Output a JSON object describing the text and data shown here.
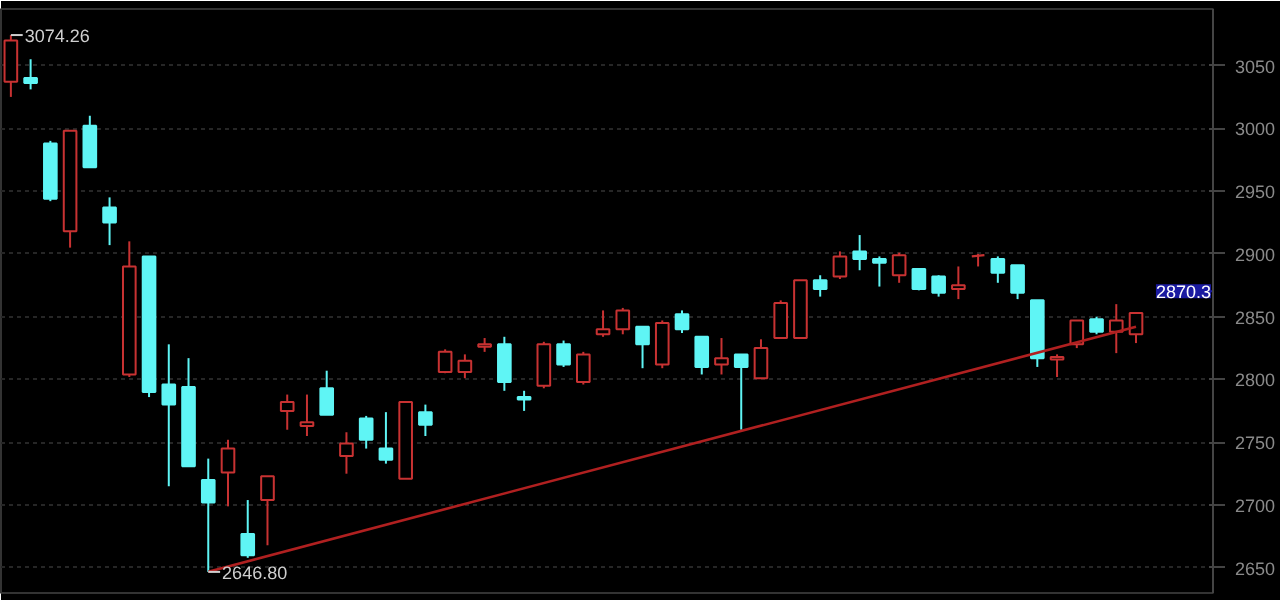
{
  "chart_data": {
    "type": "candlestick",
    "categories": [
      null,
      null,
      null,
      null,
      null,
      null,
      null,
      null,
      null,
      null,
      null,
      null,
      null,
      null,
      null,
      null,
      null,
      null,
      null,
      null,
      null,
      null,
      null,
      null,
      null,
      null,
      null,
      null,
      null,
      null,
      null,
      null,
      null,
      null,
      null,
      null,
      null,
      null,
      null,
      null,
      null,
      null,
      null,
      null,
      null,
      null,
      null,
      null,
      null,
      null,
      null,
      null,
      null,
      null,
      null,
      null,
      null,
      null
    ],
    "series": [
      {
        "ohlc": [
          [
            3037,
            3074.26,
            3025,
            3070
          ],
          [
            3040,
            3055,
            3031,
            3036
          ],
          [
            2988,
            2990,
            2942,
            2944
          ],
          [
            2918,
            2998,
            2905,
            2998
          ],
          [
            3002,
            3010,
            2969,
            2969
          ],
          [
            2937,
            2945,
            2907,
            2925
          ],
          [
            2804,
            2910,
            2802,
            2890
          ],
          [
            2898,
            2898,
            2786,
            2790
          ],
          [
            2796,
            2828,
            2715,
            2780
          ],
          [
            2794,
            2817,
            2731,
            2731
          ],
          [
            2720,
            2737,
            2646.8,
            2702
          ],
          [
            2726,
            2752,
            2699,
            2745
          ],
          [
            2677,
            2704,
            2658,
            2660
          ],
          [
            2704,
            2723,
            2668,
            2723
          ],
          [
            2775,
            2788,
            2760,
            2782
          ],
          [
            2763,
            2788,
            2755,
            2766
          ],
          [
            2793,
            2807,
            2772,
            2772
          ],
          [
            2739,
            2758,
            2725,
            2749
          ],
          [
            2769,
            2771,
            2745,
            2752
          ],
          [
            2745,
            2774,
            2733,
            2736
          ],
          [
            2721,
            2782,
            2721,
            2782
          ],
          [
            2774,
            2780,
            2755,
            2764
          ],
          [
            2806,
            2824,
            2805,
            2822
          ],
          [
            2806,
            2820,
            2801,
            2815
          ],
          [
            2826,
            2833,
            2822,
            2828
          ],
          [
            2828,
            2834,
            2791,
            2798
          ],
          [
            2786,
            2791,
            2775,
            2784
          ],
          [
            2795,
            2830,
            2793,
            2828
          ],
          [
            2828,
            2831,
            2810,
            2812
          ],
          [
            2798,
            2822,
            2796,
            2820
          ],
          [
            2836,
            2855,
            2834,
            2840
          ],
          [
            2840,
            2857,
            2836,
            2855
          ],
          [
            2842,
            2842,
            2809,
            2828
          ],
          [
            2812,
            2847,
            2809,
            2845
          ],
          [
            2852,
            2855,
            2837,
            2840
          ],
          [
            2834,
            2834,
            2804,
            2810
          ],
          [
            2812,
            2833,
            2804,
            2817
          ],
          [
            2820,
            2820,
            2760,
            2810
          ],
          [
            2801,
            2832,
            2801,
            2825
          ],
          [
            2833,
            2863,
            2833,
            2861
          ],
          [
            2833,
            2879,
            2833,
            2879
          ],
          [
            2879,
            2883,
            2866,
            2872
          ],
          [
            2882,
            2902,
            2880,
            2898
          ],
          [
            2902,
            2915,
            2887,
            2896
          ],
          [
            2896,
            2898,
            2874,
            2893
          ],
          [
            2883,
            2901,
            2877,
            2899
          ],
          [
            2888,
            2888,
            2871,
            2872
          ],
          [
            2882,
            2883,
            2866,
            2869
          ],
          [
            2872,
            2890,
            2864,
            2875
          ],
          [
            2898,
            2900,
            2890,
            2899
          ],
          [
            2896,
            2898,
            2877,
            2885
          ],
          [
            2891,
            2891,
            2864,
            2869
          ],
          [
            2863,
            2863,
            2810,
            2817
          ],
          [
            2816,
            2820,
            2802,
            2818
          ],
          [
            2828,
            2847,
            2825,
            2847
          ],
          [
            2848,
            2850,
            2836,
            2838
          ],
          [
            2838,
            2860,
            2821,
            2847
          ],
          [
            2836,
            2853,
            2829,
            2853
          ]
        ],
        "colors": [
          "#c83232",
          "#5ff5f5",
          "#5ff5f5",
          "#c83232",
          "#5ff5f5",
          "#5ff5f5",
          "#c83232",
          "#5ff5f5",
          "#5ff5f5",
          "#5ff5f5",
          "#5ff5f5",
          "#c83232",
          "#5ff5f5",
          "#c83232",
          "#c83232",
          "#c83232",
          "#5ff5f5",
          "#c83232",
          "#5ff5f5",
          "#5ff5f5",
          "#c83232",
          "#5ff5f5",
          "#c83232",
          "#c83232",
          "#c83232",
          "#5ff5f5",
          "#5ff5f5",
          "#c83232",
          "#5ff5f5",
          "#c83232",
          "#c83232",
          "#c83232",
          "#5ff5f5",
          "#c83232",
          "#5ff5f5",
          "#5ff5f5",
          "#c83232",
          "#5ff5f5",
          "#c83232",
          "#c83232",
          "#c83232",
          "#5ff5f5",
          "#c83232",
          "#5ff5f5",
          "#5ff5f5",
          "#c83232",
          "#5ff5f5",
          "#5ff5f5",
          "#c83232",
          "#c83232",
          "#5ff5f5",
          "#5ff5f5",
          "#5ff5f5",
          "#c83232",
          "#c83232",
          "#5ff5f5",
          "#c83232",
          "#c83232"
        ]
      },
      {
        "type": "line",
        "color": "#b02020",
        "values": [
          null,
          null,
          null,
          null,
          null,
          null,
          null,
          null,
          null,
          null,
          2647,
          null,
          null,
          null,
          null,
          null,
          null,
          null,
          null,
          null,
          null,
          null,
          null,
          null,
          null,
          null,
          null,
          null,
          null,
          null,
          null,
          null,
          null,
          null,
          null,
          null,
          null,
          null,
          null,
          null,
          null,
          null,
          null,
          null,
          null,
          null,
          null,
          null,
          null,
          null,
          null,
          null,
          null,
          null,
          null,
          null,
          null,
          2842
        ]
      }
    ],
    "ylim": [
      2630,
      3095
    ],
    "yticks": [
      2650,
      2700,
      2750,
      2800,
      2850,
      2900,
      2950,
      3000,
      3050
    ],
    "grid": "y",
    "ref_lines": [
      {
        "axis": "y",
        "value": 2870.3,
        "label": "2870.3",
        "color": "#1a1aa0"
      }
    ],
    "annotations": [
      "3074.26",
      "2646.80"
    ]
  }
}
